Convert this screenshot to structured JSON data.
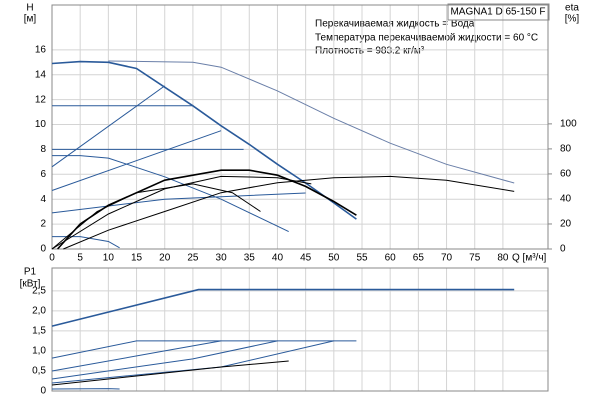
{
  "chart_data": [
    {
      "type": "line",
      "title": "MAGNA1 D 65-150 F",
      "annotations": [
        "Перекачиваемая жидкость = Вода",
        "Температура перекачиваемой жидкости = 60 °C",
        "Плотность = 983.2 кг/м³"
      ],
      "ylabel": "H",
      "yunit": "[м]",
      "y2label": "eta",
      "y2unit": "[%]",
      "xlabel": "Q [м³/ч]",
      "xlim": [
        0,
        88
      ],
      "xticks": [
        0,
        5,
        10,
        15,
        20,
        25,
        30,
        35,
        40,
        45,
        50,
        55,
        60,
        65,
        70,
        75,
        80
      ],
      "ylim": [
        0,
        19.6
      ],
      "yticks": [
        0,
        2,
        4,
        6,
        8,
        10,
        12,
        14,
        16
      ],
      "y2lim": [
        0,
        195
      ],
      "y2ticks": [
        0,
        20,
        40,
        60,
        80,
        100
      ],
      "grid": true,
      "series": [
        {
          "color": "#2a5a9a",
          "x": [
            0,
            5,
            10,
            15,
            20,
            25,
            30,
            35,
            40,
            45,
            50,
            54
          ],
          "values": [
            14.9,
            15.05,
            15.0,
            14.5,
            13.0,
            11.5,
            9.9,
            8.4,
            6.8,
            5.3,
            3.7,
            2.4
          ]
        },
        {
          "color": "#6a7fa8",
          "x": [
            10,
            25,
            30,
            40,
            50,
            60,
            70,
            82
          ],
          "values": [
            15.1,
            15.0,
            14.6,
            12.7,
            10.5,
            8.5,
            6.8,
            5.3
          ]
        },
        {
          "color": "#2a5a9a",
          "x": [
            0,
            20
          ],
          "values": [
            6.6,
            13.1
          ]
        },
        {
          "color": "#2a5a9a",
          "x": [
            0,
            25
          ],
          "values": [
            11.5,
            11.5
          ]
        },
        {
          "color": "#2a5a9a",
          "x": [
            0,
            30
          ],
          "values": [
            4.7,
            9.5
          ]
        },
        {
          "color": "#2a5a9a",
          "x": [
            0,
            34
          ],
          "values": [
            8.0,
            8.0
          ]
        },
        {
          "color": "#2a5a9a",
          "x": [
            0,
            5,
            10,
            20,
            30,
            42
          ],
          "values": [
            7.5,
            7.5,
            7.3,
            5.8,
            4.0,
            1.4
          ]
        },
        {
          "color": "#2a5a9a",
          "x": [
            0,
            20,
            45
          ],
          "values": [
            2.9,
            4.0,
            4.5
          ]
        },
        {
          "color": "#2a5a9a",
          "x": [
            0,
            5,
            10,
            12
          ],
          "values": [
            1.0,
            1.0,
            0.6,
            0.1
          ]
        },
        {
          "color": "#000000",
          "axis": "y2",
          "x": [
            1,
            5,
            10,
            20,
            30,
            35,
            40,
            45,
            50,
            54
          ],
          "values": [
            0,
            20,
            35,
            55,
            63,
            63,
            59,
            50,
            38,
            27
          ]
        },
        {
          "color": "#000000",
          "axis": "y2",
          "x": [
            0,
            10,
            20,
            30,
            40,
            46
          ],
          "values": [
            0,
            28,
            48,
            58,
            57,
            52
          ]
        },
        {
          "color": "#000000",
          "axis": "y2",
          "x": [
            0,
            8,
            15,
            25,
            32,
            37
          ],
          "values": [
            0,
            30,
            45,
            52,
            45,
            30
          ]
        },
        {
          "color": "#000000",
          "axis": "y2",
          "x": [
            2,
            10,
            20,
            30,
            40,
            50,
            60,
            70,
            82
          ],
          "values": [
            0,
            15,
            30,
            45,
            53,
            57,
            58,
            55,
            46
          ]
        }
      ]
    },
    {
      "type": "line",
      "ylabel": "P1",
      "yunit": "[кВт]",
      "xlim": [
        0,
        88
      ],
      "xticks": [
        0,
        5,
        10,
        15,
        20,
        25,
        30,
        35,
        40,
        45,
        50,
        55,
        60,
        65,
        70,
        75,
        80
      ],
      "ylim": [
        0,
        3.07
      ],
      "yticks": [
        {
          "value": 0,
          "label": "0"
        },
        {
          "value": 0.5,
          "label": "0,5"
        },
        {
          "value": 1,
          "label": "1,0"
        },
        {
          "value": 1.5,
          "label": "1,5"
        },
        {
          "value": 2,
          "label": "2,0"
        },
        {
          "value": 2.5,
          "label": "2,5"
        }
      ],
      "grid": true,
      "series": [
        {
          "color": "#2a5a9a",
          "x": [
            0,
            26,
            82
          ],
          "values": [
            1.62,
            2.53,
            2.53
          ]
        },
        {
          "color": "#2a5a9a",
          "x": [
            0,
            15,
            54
          ],
          "values": [
            0.82,
            1.25,
            1.25
          ]
        },
        {
          "color": "#2a5a9a",
          "x": [
            0,
            20,
            30
          ],
          "values": [
            0.5,
            1.0,
            1.25
          ]
        },
        {
          "color": "#2a5a9a",
          "x": [
            0,
            25,
            40
          ],
          "values": [
            0.3,
            0.8,
            1.25
          ]
        },
        {
          "color": "#2a5a9a",
          "x": [
            0,
            30,
            50
          ],
          "values": [
            0.2,
            0.6,
            1.25
          ]
        },
        {
          "color": "#2a5a9a",
          "x": [
            0,
            10,
            12
          ],
          "values": [
            0.05,
            0.06,
            0.05
          ]
        },
        {
          "color": "#000000",
          "x": [
            0,
            10,
            20,
            30,
            42
          ],
          "values": [
            0.15,
            0.3,
            0.45,
            0.6,
            0.75
          ]
        }
      ]
    }
  ]
}
